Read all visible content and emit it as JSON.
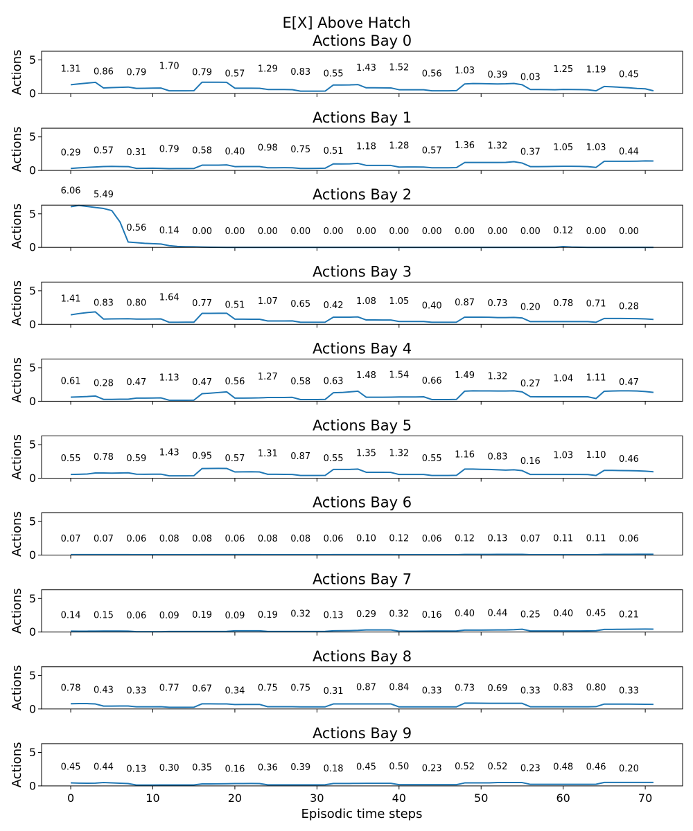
{
  "chart_data": {
    "type": "line",
    "title": "E[X] Above Hatch",
    "xlabel": "Episodic time steps",
    "ylabel": "Actions",
    "xlim": [
      -3.55,
      74.55
    ],
    "ylim": [
      0,
      6.3
    ],
    "x_ticks": [
      0,
      10,
      20,
      30,
      40,
      50,
      60,
      70
    ],
    "y_ticks": [
      0,
      5
    ],
    "line_color": "#1f77b4",
    "annotation_x": [
      0,
      4,
      8,
      12,
      16,
      20,
      24,
      28,
      32,
      36,
      40,
      44,
      48,
      52,
      56,
      60,
      64,
      68
    ],
    "panels": [
      {
        "title": "Actions Bay 0",
        "annotations": [
          "1.31",
          "0.86",
          "0.79",
          "1.70",
          "0.79",
          "0.57",
          "1.29",
          "0.83",
          "0.55",
          "1.43",
          "1.52",
          "0.56",
          "1.03",
          "0.39",
          "0.03",
          "1.25",
          "1.19",
          "0.45"
        ],
        "values": [
          1.31,
          1.43,
          1.55,
          1.67,
          0.82,
          0.88,
          0.92,
          0.96,
          0.76,
          0.78,
          0.8,
          0.81,
          0.4,
          0.4,
          0.4,
          0.41,
          1.68,
          1.68,
          1.68,
          1.66,
          0.79,
          0.79,
          0.79,
          0.78,
          0.6,
          0.6,
          0.59,
          0.57,
          0.35,
          0.35,
          0.35,
          0.36,
          1.27,
          1.27,
          1.28,
          1.33,
          0.85,
          0.85,
          0.84,
          0.83,
          0.56,
          0.56,
          0.56,
          0.55,
          0.4,
          0.4,
          0.4,
          0.43,
          1.42,
          1.48,
          1.47,
          1.45,
          1.42,
          1.44,
          1.5,
          1.3,
          0.6,
          0.6,
          0.58,
          0.56,
          0.61,
          0.6,
          0.58,
          0.56,
          0.4,
          1.05,
          1.0,
          0.92,
          0.85,
          0.75,
          0.7,
          0.4
        ]
      },
      {
        "title": "Actions Bay 1",
        "annotations": [
          "0.29",
          "0.57",
          "0.31",
          "0.79",
          "0.58",
          "0.40",
          "0.98",
          "0.75",
          "0.51",
          "1.18",
          "1.28",
          "0.57",
          "1.36",
          "1.32",
          "0.37",
          "1.05",
          "1.03",
          "0.44"
        ],
        "values": [
          0.29,
          0.38,
          0.45,
          0.52,
          0.58,
          0.6,
          0.58,
          0.57,
          0.31,
          0.32,
          0.33,
          0.31,
          0.27,
          0.28,
          0.28,
          0.29,
          0.78,
          0.78,
          0.79,
          0.82,
          0.57,
          0.58,
          0.58,
          0.58,
          0.4,
          0.4,
          0.41,
          0.4,
          0.3,
          0.3,
          0.31,
          0.33,
          0.98,
          0.97,
          0.98,
          1.05,
          0.75,
          0.75,
          0.75,
          0.74,
          0.5,
          0.51,
          0.51,
          0.5,
          0.4,
          0.4,
          0.4,
          0.42,
          1.18,
          1.18,
          1.18,
          1.18,
          1.18,
          1.2,
          1.3,
          1.1,
          0.57,
          0.57,
          0.58,
          0.6,
          0.62,
          0.62,
          0.6,
          0.57,
          0.45,
          1.36,
          1.36,
          1.36,
          1.36,
          1.38,
          1.42,
          1.4
        ]
      },
      {
        "title": "Actions Bay 2",
        "annotations": [
          "6.06",
          "5.49",
          "0.56",
          "0.14",
          "0.00",
          "0.00",
          "0.00",
          "0.00",
          "0.00",
          "0.00",
          "0.00",
          "0.00",
          "0.00",
          "0.00",
          "0.00",
          "0.12",
          "0.00",
          "0.00"
        ],
        "values": [
          6.06,
          6.25,
          6.1,
          5.95,
          5.8,
          5.49,
          3.8,
          0.8,
          0.7,
          0.6,
          0.55,
          0.5,
          0.25,
          0.14,
          0.1,
          0.08,
          0.04,
          0.02,
          0.01,
          0.0,
          0.0,
          0.0,
          0.0,
          0.0,
          0.0,
          0.0,
          0.0,
          0.0,
          0.0,
          0.0,
          0.0,
          0.0,
          0.0,
          0.0,
          0.0,
          0.0,
          0.0,
          0.0,
          0.0,
          0.0,
          0.0,
          0.0,
          0.0,
          0.0,
          0.0,
          0.0,
          0.0,
          0.0,
          0.0,
          0.0,
          0.0,
          0.0,
          0.0,
          0.0,
          0.0,
          0.0,
          0.0,
          0.0,
          0.0,
          0.0,
          0.12,
          0.05,
          0.02,
          0.0,
          0.0,
          0.0,
          0.0,
          0.0,
          0.0,
          0.0,
          0.0,
          0.0
        ]
      },
      {
        "title": "Actions Bay 3",
        "annotations": [
          "1.41",
          "0.83",
          "0.80",
          "1.64",
          "0.77",
          "0.51",
          "1.07",
          "0.65",
          "0.42",
          "1.08",
          "1.05",
          "0.40",
          "0.87",
          "0.73",
          "0.20",
          "0.78",
          "0.71",
          "0.28"
        ],
        "values": [
          1.41,
          1.6,
          1.75,
          1.85,
          0.78,
          0.8,
          0.82,
          0.83,
          0.78,
          0.78,
          0.79,
          0.8,
          0.3,
          0.3,
          0.31,
          0.31,
          1.63,
          1.63,
          1.64,
          1.65,
          0.77,
          0.77,
          0.76,
          0.75,
          0.5,
          0.5,
          0.5,
          0.51,
          0.3,
          0.3,
          0.3,
          0.32,
          1.06,
          1.06,
          1.07,
          1.1,
          0.65,
          0.65,
          0.64,
          0.64,
          0.42,
          0.42,
          0.42,
          0.42,
          0.3,
          0.3,
          0.3,
          0.32,
          1.07,
          1.07,
          1.06,
          1.05,
          1.0,
          1.0,
          1.03,
          0.95,
          0.4,
          0.4,
          0.4,
          0.41,
          0.41,
          0.41,
          0.4,
          0.4,
          0.3,
          0.87,
          0.87,
          0.87,
          0.86,
          0.85,
          0.8,
          0.73
        ]
      },
      {
        "title": "Actions Bay 4",
        "annotations": [
          "0.61",
          "0.28",
          "0.47",
          "1.13",
          "0.47",
          "0.56",
          "1.27",
          "0.58",
          "0.63",
          "1.48",
          "1.54",
          "0.66",
          "1.49",
          "1.32",
          "0.27",
          "1.04",
          "1.11",
          "0.47"
        ],
        "values": [
          0.61,
          0.65,
          0.7,
          0.78,
          0.28,
          0.28,
          0.3,
          0.3,
          0.47,
          0.47,
          0.48,
          0.5,
          0.15,
          0.15,
          0.15,
          0.16,
          1.12,
          1.2,
          1.3,
          1.4,
          0.47,
          0.47,
          0.48,
          0.5,
          0.56,
          0.56,
          0.56,
          0.58,
          0.25,
          0.25,
          0.25,
          0.27,
          1.27,
          1.3,
          1.4,
          1.5,
          0.6,
          0.6,
          0.6,
          0.61,
          0.63,
          0.63,
          0.63,
          0.66,
          0.25,
          0.25,
          0.25,
          0.28,
          1.5,
          1.55,
          1.54,
          1.54,
          1.52,
          1.52,
          1.55,
          1.4,
          0.68,
          0.66,
          0.66,
          0.66,
          0.66,
          0.66,
          0.66,
          0.66,
          0.4,
          1.49,
          1.52,
          1.55,
          1.55,
          1.52,
          1.45,
          1.32
        ]
      },
      {
        "title": "Actions Bay 5",
        "annotations": [
          "0.55",
          "0.78",
          "0.59",
          "1.43",
          "0.95",
          "0.57",
          "1.31",
          "0.87",
          "0.55",
          "1.35",
          "1.32",
          "0.55",
          "1.16",
          "0.83",
          "0.16",
          "1.03",
          "1.10",
          "0.46"
        ],
        "values": [
          0.55,
          0.58,
          0.62,
          0.78,
          0.78,
          0.75,
          0.78,
          0.8,
          0.59,
          0.58,
          0.59,
          0.6,
          0.35,
          0.35,
          0.35,
          0.36,
          1.43,
          1.45,
          1.46,
          1.45,
          0.93,
          0.94,
          0.95,
          0.93,
          0.58,
          0.58,
          0.57,
          0.56,
          0.4,
          0.4,
          0.4,
          0.41,
          1.3,
          1.3,
          1.31,
          1.35,
          0.88,
          0.88,
          0.88,
          0.86,
          0.55,
          0.55,
          0.55,
          0.55,
          0.4,
          0.4,
          0.4,
          0.42,
          1.35,
          1.35,
          1.32,
          1.3,
          1.25,
          1.2,
          1.25,
          1.12,
          0.55,
          0.55,
          0.55,
          0.56,
          0.56,
          0.56,
          0.55,
          0.54,
          0.4,
          1.16,
          1.16,
          1.14,
          1.12,
          1.1,
          1.05,
          0.95
        ]
      },
      {
        "title": "Actions Bay 6",
        "annotations": [
          "0.07",
          "0.07",
          "0.06",
          "0.08",
          "0.08",
          "0.06",
          "0.08",
          "0.08",
          "0.06",
          "0.10",
          "0.12",
          "0.06",
          "0.12",
          "0.13",
          "0.07",
          "0.11",
          "0.11",
          "0.06"
        ],
        "values": [
          0.07,
          0.07,
          0.07,
          0.07,
          0.07,
          0.07,
          0.07,
          0.07,
          0.06,
          0.06,
          0.06,
          0.06,
          0.06,
          0.06,
          0.06,
          0.06,
          0.08,
          0.08,
          0.08,
          0.08,
          0.08,
          0.08,
          0.08,
          0.08,
          0.06,
          0.06,
          0.06,
          0.06,
          0.06,
          0.06,
          0.06,
          0.06,
          0.08,
          0.08,
          0.08,
          0.08,
          0.08,
          0.08,
          0.08,
          0.08,
          0.06,
          0.06,
          0.06,
          0.06,
          0.06,
          0.06,
          0.06,
          0.06,
          0.1,
          0.1,
          0.1,
          0.1,
          0.12,
          0.12,
          0.12,
          0.12,
          0.06,
          0.06,
          0.06,
          0.06,
          0.06,
          0.06,
          0.06,
          0.06,
          0.06,
          0.12,
          0.12,
          0.12,
          0.12,
          0.13,
          0.13,
          0.13
        ]
      },
      {
        "title": "Actions Bay 7",
        "annotations": [
          "0.14",
          "0.15",
          "0.06",
          "0.09",
          "0.19",
          "0.09",
          "0.19",
          "0.32",
          "0.13",
          "0.29",
          "0.32",
          "0.16",
          "0.40",
          "0.44",
          "0.25",
          "0.40",
          "0.45",
          "0.21"
        ],
        "values": [
          0.14,
          0.13,
          0.13,
          0.14,
          0.15,
          0.15,
          0.15,
          0.14,
          0.06,
          0.06,
          0.06,
          0.06,
          0.09,
          0.09,
          0.09,
          0.09,
          0.09,
          0.09,
          0.09,
          0.1,
          0.19,
          0.19,
          0.19,
          0.19,
          0.09,
          0.09,
          0.09,
          0.09,
          0.09,
          0.09,
          0.09,
          0.1,
          0.19,
          0.2,
          0.22,
          0.25,
          0.32,
          0.32,
          0.32,
          0.32,
          0.13,
          0.13,
          0.13,
          0.14,
          0.15,
          0.15,
          0.15,
          0.16,
          0.29,
          0.29,
          0.29,
          0.3,
          0.32,
          0.32,
          0.35,
          0.42,
          0.16,
          0.16,
          0.16,
          0.16,
          0.16,
          0.16,
          0.16,
          0.18,
          0.2,
          0.4,
          0.4,
          0.41,
          0.42,
          0.44,
          0.45,
          0.44
        ]
      },
      {
        "title": "Actions Bay 8",
        "annotations": [
          "0.78",
          "0.43",
          "0.33",
          "0.77",
          "0.67",
          "0.34",
          "0.75",
          "0.75",
          "0.31",
          "0.87",
          "0.84",
          "0.33",
          "0.73",
          "0.69",
          "0.33",
          "0.83",
          "0.80",
          "0.33"
        ],
        "values": [
          0.78,
          0.8,
          0.8,
          0.75,
          0.43,
          0.43,
          0.44,
          0.44,
          0.33,
          0.33,
          0.33,
          0.34,
          0.25,
          0.25,
          0.25,
          0.26,
          0.77,
          0.77,
          0.76,
          0.75,
          0.66,
          0.67,
          0.68,
          0.68,
          0.34,
          0.34,
          0.34,
          0.34,
          0.31,
          0.31,
          0.31,
          0.32,
          0.75,
          0.75,
          0.76,
          0.76,
          0.75,
          0.75,
          0.75,
          0.76,
          0.31,
          0.31,
          0.31,
          0.31,
          0.31,
          0.31,
          0.31,
          0.32,
          0.87,
          0.87,
          0.86,
          0.85,
          0.84,
          0.84,
          0.84,
          0.84,
          0.33,
          0.33,
          0.33,
          0.33,
          0.33,
          0.33,
          0.33,
          0.33,
          0.35,
          0.73,
          0.73,
          0.73,
          0.73,
          0.72,
          0.7,
          0.69
        ]
      },
      {
        "title": "Actions Bay 9",
        "annotations": [
          "0.45",
          "0.44",
          "0.13",
          "0.30",
          "0.35",
          "0.16",
          "0.36",
          "0.39",
          "0.18",
          "0.45",
          "0.50",
          "0.23",
          "0.52",
          "0.52",
          "0.23",
          "0.48",
          "0.46",
          "0.20"
        ],
        "values": [
          0.45,
          0.42,
          0.4,
          0.42,
          0.5,
          0.45,
          0.4,
          0.35,
          0.13,
          0.13,
          0.13,
          0.14,
          0.14,
          0.14,
          0.14,
          0.15,
          0.3,
          0.3,
          0.31,
          0.32,
          0.35,
          0.35,
          0.36,
          0.35,
          0.16,
          0.16,
          0.16,
          0.16,
          0.16,
          0.16,
          0.16,
          0.17,
          0.36,
          0.36,
          0.37,
          0.38,
          0.39,
          0.39,
          0.39,
          0.39,
          0.18,
          0.18,
          0.18,
          0.18,
          0.18,
          0.18,
          0.18,
          0.18,
          0.45,
          0.45,
          0.45,
          0.46,
          0.5,
          0.5,
          0.5,
          0.5,
          0.23,
          0.23,
          0.23,
          0.23,
          0.23,
          0.23,
          0.23,
          0.23,
          0.25,
          0.52,
          0.52,
          0.52,
          0.52,
          0.52,
          0.52,
          0.52
        ]
      }
    ]
  }
}
